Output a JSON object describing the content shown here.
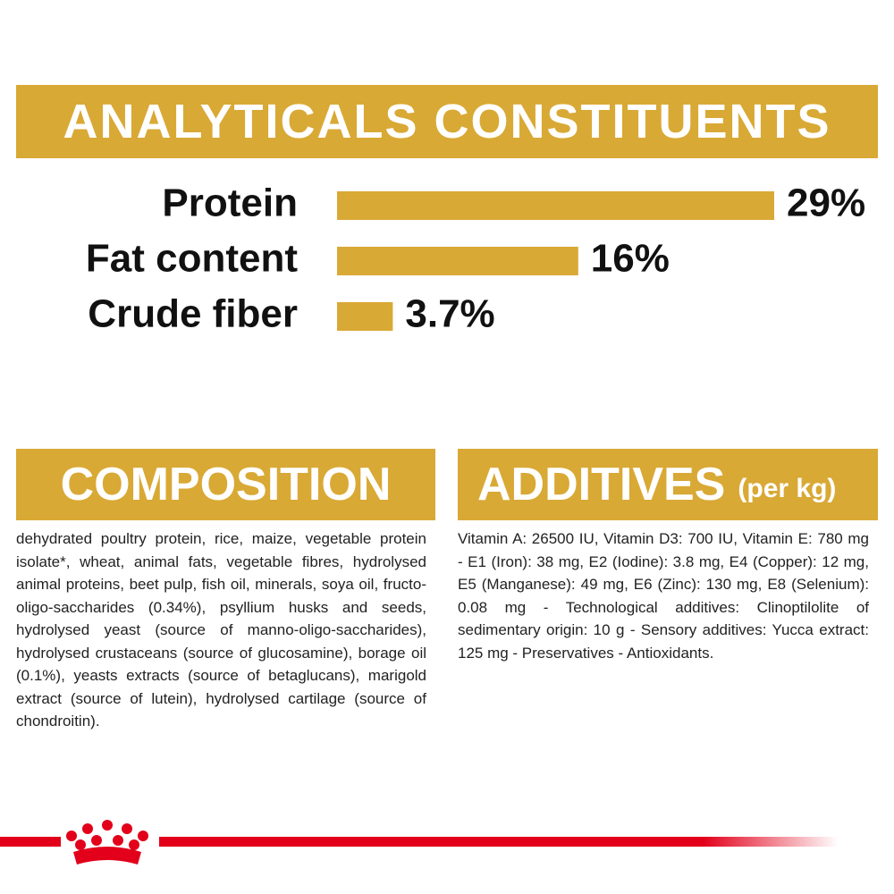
{
  "header": {
    "title": "ANALYTICALS CONSTITUENTS"
  },
  "chart_data": {
    "type": "bar",
    "orientation": "horizontal",
    "categories": [
      "Protein",
      "Fat content",
      "Crude fiber"
    ],
    "values": [
      29,
      16,
      3.7
    ],
    "value_labels": [
      "29%",
      "16%",
      "3.7%"
    ],
    "color": "#d9a935"
  },
  "composition": {
    "title": "COMPOSITION",
    "text": "dehydrated poultry protein, rice, maize, vegetable protein isolate*, wheat, animal fats, vegetable fibres, hydrolysed animal proteins, beet pulp, fish oil, minerals, soya oil, fructo-oligo-saccharides (0.34%), psyllium husks and seeds, hydrolysed yeast (source of manno-oligo-saccharides), hydrolysed crustaceans (source of glucosamine), borage oil (0.1%), yeasts extracts (source of betaglucans), marigold extract (source of lutein), hydrolysed cartilage (source of chondroitin)."
  },
  "additives": {
    "title": "ADDITIVES",
    "unit": "(per kg)",
    "text": "Vitamin A: 26500 IU, Vitamin D3: 700 IU, Vitamin E: 780 mg - E1 (Iron): 38 mg, E2 (Iodine): 3.8 mg, E4 (Copper): 12 mg, E5 (Manganese): 49 mg, E6 (Zinc): 130 mg, E8 (Selenium): 0.08 mg - Technological additives: Clinoptilolite of sedimentary origin: 10 g - Sensory additives: Yucca extract: 125 mg - Preservatives - Antioxidants."
  }
}
